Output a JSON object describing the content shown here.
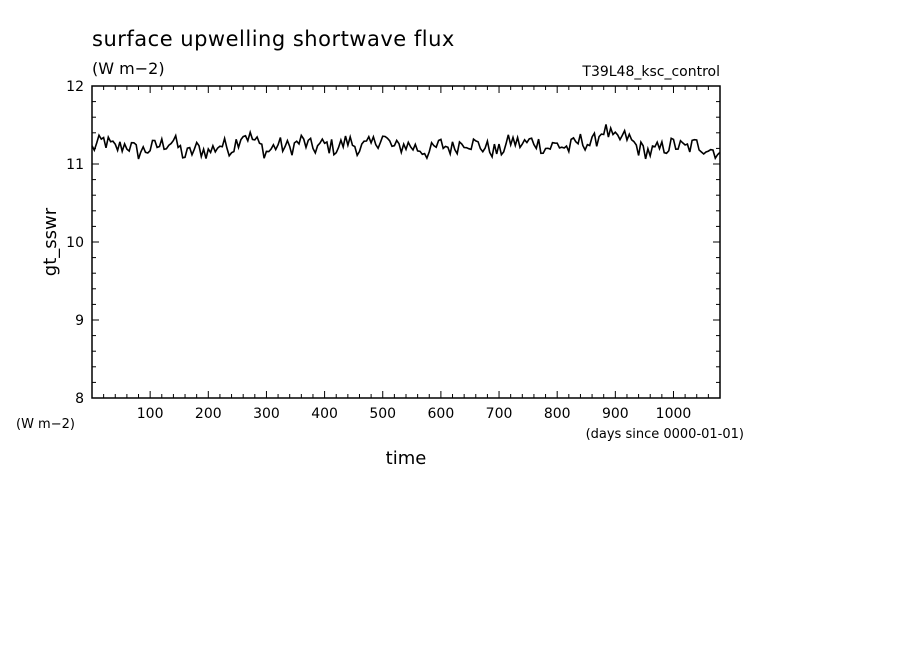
{
  "chart_data": {
    "type": "line",
    "title": "surface upwelling shortwave flux",
    "subtitle": "(W m−2)",
    "run_label": "T39L48_ksc_control",
    "xlabel": "time",
    "xunits": "(days since 0000-01-01)",
    "ylabel": "gt_sswr",
    "yunits": "(W m−2)",
    "xlim": [
      0,
      1080
    ],
    "ylim": [
      8,
      12
    ],
    "xticks": [
      100,
      200,
      300,
      400,
      500,
      600,
      700,
      800,
      900,
      1000
    ],
    "xtick_labels": [
      "100",
      "200",
      "300",
      "400",
      "500",
      "600",
      "700",
      "800",
      "900",
      "1000"
    ],
    "yticks": [
      8,
      9,
      10,
      11,
      12
    ],
    "ytick_labels": [
      "8",
      "9",
      "10",
      "11",
      "12"
    ],
    "grid": false,
    "series": [
      {
        "color": "#000000",
        "x": [
          0,
          20,
          40,
          60,
          80,
          100,
          120,
          140,
          160,
          180,
          200,
          220,
          240,
          260,
          280,
          300,
          320,
          340,
          360,
          380,
          400,
          420,
          440,
          460,
          480,
          500,
          520,
          540,
          560,
          580,
          600,
          620,
          640,
          660,
          680,
          700,
          720,
          740,
          760,
          780,
          800,
          820,
          840,
          860,
          880,
          900,
          920,
          940,
          960,
          980,
          1000,
          1020,
          1040,
          1060,
          1080
        ],
        "y": [
          11.2,
          11.3,
          11.2,
          11.25,
          11.15,
          11.2,
          11.25,
          11.3,
          11.1,
          11.2,
          11.15,
          11.25,
          11.2,
          11.4,
          11.3,
          11.15,
          11.25,
          11.2,
          11.3,
          11.2,
          11.25,
          11.2,
          11.3,
          11.2,
          11.25,
          11.35,
          11.2,
          11.25,
          11.2,
          11.15,
          11.25,
          11.2,
          11.3,
          11.25,
          11.2,
          11.15,
          11.3,
          11.25,
          11.3,
          11.2,
          11.25,
          11.2,
          11.3,
          11.25,
          11.45,
          11.3,
          11.35,
          11.2,
          11.15,
          11.2,
          11.25,
          11.2,
          11.25,
          11.2,
          11.15
        ]
      }
    ]
  }
}
